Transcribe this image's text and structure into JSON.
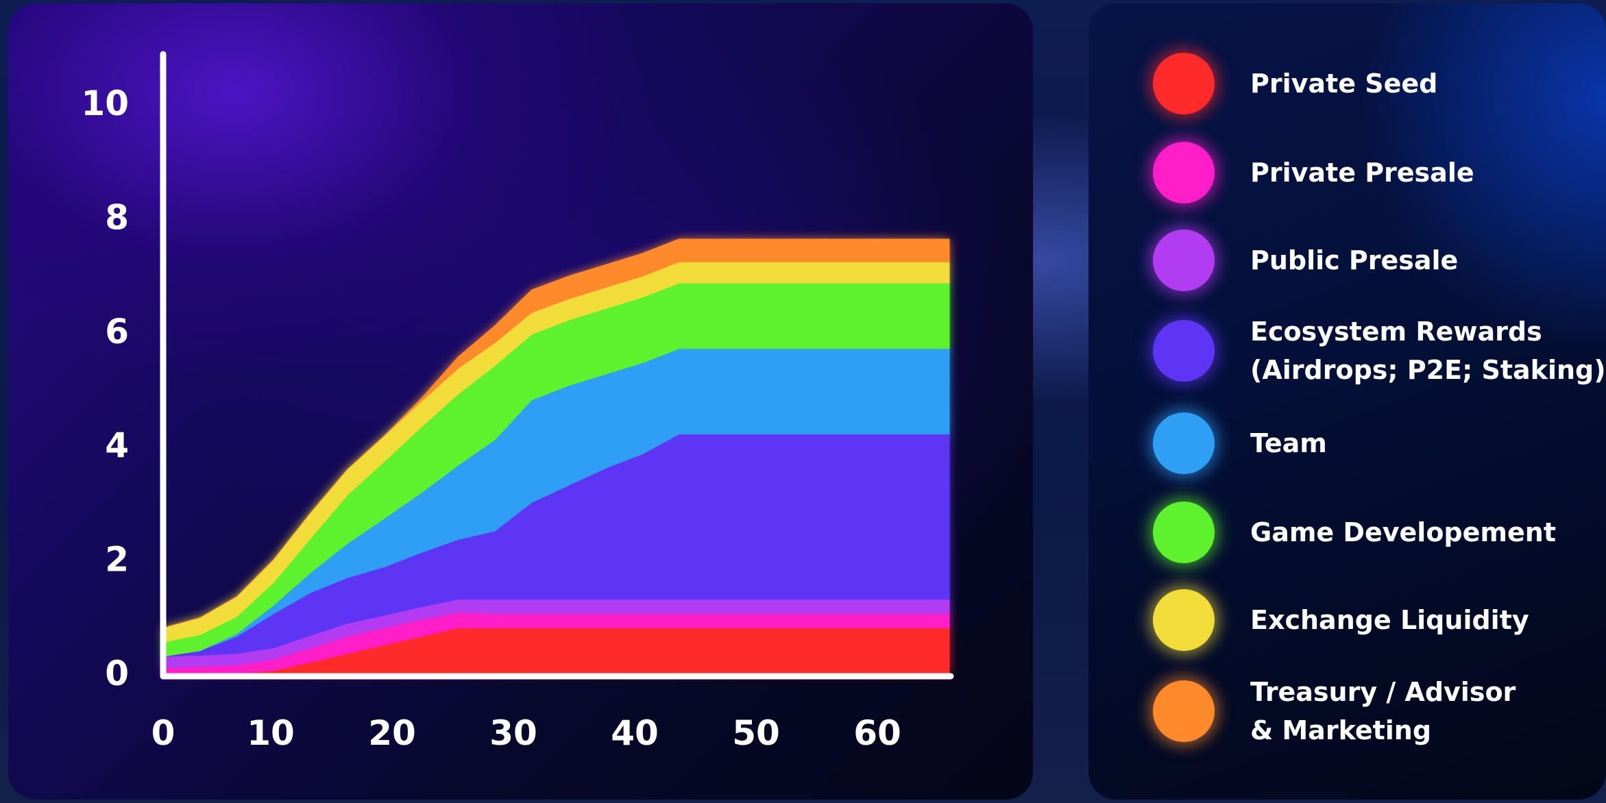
{
  "chart_data": {
    "type": "area",
    "stacked": true,
    "title": "",
    "xlabel": "",
    "ylabel": "",
    "xlim": [
      0,
      64
    ],
    "ylim": [
      0,
      10.5
    ],
    "x_ticks": [
      0,
      10,
      20,
      30,
      40,
      50,
      60
    ],
    "x_tick_labels": [
      "0",
      "10",
      "20",
      "30",
      "40",
      "50",
      "60"
    ],
    "y_ticks": [
      0,
      2,
      4,
      6,
      8,
      10
    ],
    "y_tick_labels": [
      "0",
      "2",
      "4",
      "6",
      "8",
      "10"
    ],
    "legend_position": "right",
    "x": [
      0,
      3,
      6,
      9,
      12,
      15,
      18,
      21,
      24,
      27,
      30,
      33,
      36,
      39,
      42,
      64
    ],
    "series": [
      {
        "name": "Private Seed",
        "color": "#ff2a2a",
        "values": [
          0,
          0,
          0,
          0.05,
          0.2,
          0.35,
          0.5,
          0.65,
          0.8,
          0.8,
          0.8,
          0.8,
          0.8,
          0.8,
          0.8,
          0.8
        ]
      },
      {
        "name": "Private Presale",
        "color": "#ff1ec8",
        "values": [
          0.1,
          0.12,
          0.15,
          0.2,
          0.25,
          0.3,
          0.3,
          0.3,
          0.27,
          0.25,
          0.25,
          0.25,
          0.25,
          0.25,
          0.25,
          0.25
        ]
      },
      {
        "name": "Public Presale",
        "color": "#b23cf2",
        "values": [
          0.2,
          0.2,
          0.2,
          0.2,
          0.22,
          0.23,
          0.22,
          0.22,
          0.23,
          0.25,
          0.25,
          0.25,
          0.25,
          0.25,
          0.25,
          0.25
        ]
      },
      {
        "name": "Ecosystem Rewards\n(Airdrops; P2E; Staking)",
        "color": "#5e35f5",
        "values": [
          0,
          0.08,
          0.3,
          0.6,
          0.75,
          0.8,
          0.85,
          0.95,
          1.05,
          1.2,
          1.7,
          2.0,
          2.3,
          2.55,
          2.9,
          2.9
        ]
      },
      {
        "name": "Team",
        "color": "#2e9ff5",
        "values": [
          0,
          0,
          0.05,
          0.15,
          0.35,
          0.6,
          0.85,
          1.05,
          1.3,
          1.6,
          1.8,
          1.75,
          1.65,
          1.6,
          1.5,
          1.5
        ]
      },
      {
        "name": "Game Developement",
        "color": "#5ef22e",
        "values": [
          0.25,
          0.28,
          0.3,
          0.4,
          0.6,
          0.85,
          1.0,
          1.15,
          1.25,
          1.3,
          1.15,
          1.15,
          1.15,
          1.15,
          1.15,
          1.15
        ]
      },
      {
        "name": "Exchange Liquidity",
        "color": "#f2dc3a",
        "values": [
          0.25,
          0.3,
          0.35,
          0.4,
          0.45,
          0.45,
          0.45,
          0.45,
          0.45,
          0.4,
          0.38,
          0.37,
          0.37,
          0.37,
          0.37,
          0.37
        ]
      },
      {
        "name": "Treasury / Advisor\n& Marketing",
        "color": "#ff8a2b",
        "values": [
          0,
          0,
          0,
          0,
          0,
          0,
          0,
          0.05,
          0.2,
          0.3,
          0.4,
          0.4,
          0.4,
          0.4,
          0.4,
          0.4
        ]
      }
    ]
  },
  "legend": {
    "items": [
      {
        "label": "Private Seed",
        "color": "#ff2a2a"
      },
      {
        "label": "Private Presale",
        "color": "#ff1ec8"
      },
      {
        "label": "Public Presale",
        "color": "#b23cf2"
      },
      {
        "label": "Ecosystem Rewards\n(Airdrops; P2E; Staking)",
        "color": "#5e35f5"
      },
      {
        "label": "Team",
        "color": "#2e9ff5"
      },
      {
        "label": "Game Developement",
        "color": "#5ef22e"
      },
      {
        "label": "Exchange Liquidity",
        "color": "#f2dc3a"
      },
      {
        "label": "Treasury / Advisor\n& Marketing",
        "color": "#ff8a2b"
      }
    ]
  }
}
